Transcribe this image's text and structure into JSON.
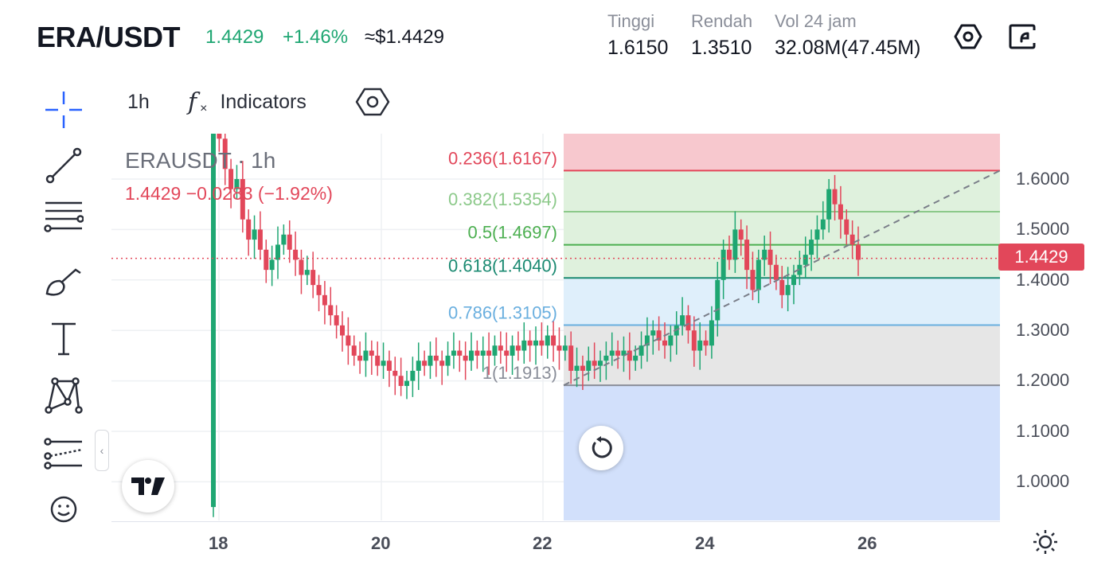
{
  "header": {
    "pair": "ERA/USDT",
    "last_price": "1.4429",
    "change_pct": "+1.46%",
    "usd_value": "≈$1.4429",
    "stats": [
      {
        "label": "Tinggi",
        "value": "1.6150"
      },
      {
        "label": "Rendah",
        "value": "1.3510"
      },
      {
        "label": "Vol 24 jam",
        "value": "32.08M(47.45M)"
      }
    ],
    "icons": [
      "settings-hexagon-icon",
      "share-icon"
    ]
  },
  "toolbar": {
    "interval": "1h",
    "indicators_label": "Indicators",
    "icons": [
      "fx-icon",
      "chart-settings-icon"
    ]
  },
  "sidebar": {
    "tools": [
      "crosshair-icon",
      "trend-line-icon",
      "fib-retracement-icon",
      "brush-icon",
      "text-icon",
      "pattern-icon",
      "forecast-icon",
      "emoji-icon"
    ],
    "collapse_glyph": "‹"
  },
  "legend": {
    "symbol": "ERAUSDT · 1h",
    "ohlc": "1.4429  −0.0283 (−1.92%)"
  },
  "yaxis": {
    "ticks": [
      "1.6000",
      "1.5000",
      "1.4000",
      "1.3000",
      "1.2000",
      "1.1000",
      "1.0000"
    ],
    "current_price": "1.4429"
  },
  "xaxis": {
    "ticks": [
      "18",
      "20",
      "22",
      "24",
      "26"
    ]
  },
  "colors": {
    "up": "#1ea672",
    "down": "#e2475a",
    "fib_0236": "#f7c8ce",
    "fib_0382": "#dff1dd",
    "fib_0618": "#dfeffb",
    "fib_1": "#e6e6e6",
    "fib_below": "#d2e0fb"
  },
  "chart_data": {
    "type": "candlestick",
    "symbol": "ERAUSDT",
    "interval": "1h",
    "ylim": [
      0.93,
      1.7
    ],
    "x_ticks": [
      "18",
      "20",
      "22",
      "24",
      "26"
    ],
    "fib_levels": [
      {
        "label": "0.236(1.6167)",
        "value": 1.6167,
        "color": "#e2475a"
      },
      {
        "label": "0.382(1.5354)",
        "value": 1.5354,
        "color": "#8cc98a"
      },
      {
        "label": "0.5(1.4697)",
        "value": 1.4697,
        "color": "#4caf50"
      },
      {
        "label": "0.618(1.4040)",
        "value": 1.404,
        "color": "#1b8a72"
      },
      {
        "label": "0.786(1.3105)",
        "value": 1.3105,
        "color": "#6aafdf"
      },
      {
        "label": "1(1.1913)",
        "value": 1.1913,
        "color": "#8a8e99"
      }
    ],
    "current_price": 1.4429,
    "candles_close": [
      1.95,
      1.68,
      1.62,
      1.58,
      1.6,
      1.52,
      1.48,
      1.5,
      1.46,
      1.42,
      1.44,
      1.47,
      1.49,
      1.46,
      1.44,
      1.41,
      1.42,
      1.39,
      1.37,
      1.35,
      1.33,
      1.31,
      1.29,
      1.27,
      1.25,
      1.24,
      1.26,
      1.25,
      1.23,
      1.24,
      1.22,
      1.21,
      1.19,
      1.2,
      1.22,
      1.24,
      1.23,
      1.25,
      1.24,
      1.23,
      1.25,
      1.26,
      1.25,
      1.24,
      1.26,
      1.25,
      1.26,
      1.25,
      1.27,
      1.26,
      1.25,
      1.27,
      1.26,
      1.28,
      1.27,
      1.28,
      1.27,
      1.29,
      1.27,
      1.26,
      1.27,
      1.22,
      1.23,
      1.22,
      1.24,
      1.23,
      1.24,
      1.25,
      1.26,
      1.25,
      1.26,
      1.24,
      1.25,
      1.27,
      1.29,
      1.3,
      1.28,
      1.27,
      1.29,
      1.31,
      1.33,
      1.3,
      1.26,
      1.28,
      1.27,
      1.32,
      1.4,
      1.46,
      1.44,
      1.5,
      1.48,
      1.42,
      1.38,
      1.44,
      1.46,
      1.43,
      1.4,
      1.37,
      1.39,
      1.41,
      1.43,
      1.45,
      1.48,
      1.5,
      1.52,
      1.58,
      1.55,
      1.52,
      1.49,
      1.47,
      1.44
    ]
  }
}
